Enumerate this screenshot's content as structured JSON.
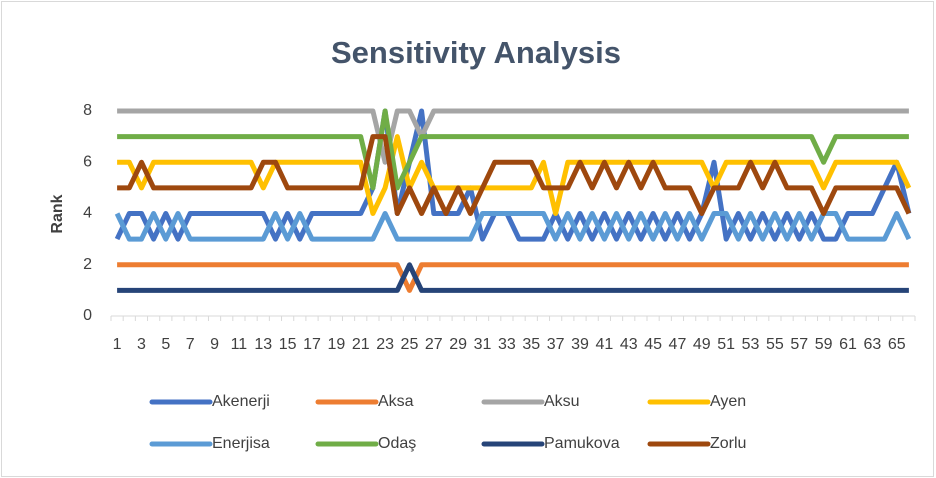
{
  "chart_data": {
    "type": "line",
    "title": "Sensitivity Analysis",
    "y_label": "Rank",
    "categories": [
      1,
      null,
      3,
      null,
      5,
      null,
      7,
      null,
      9,
      null,
      11,
      null,
      13,
      null,
      15,
      null,
      17,
      null,
      19,
      null,
      21,
      null,
      23,
      null,
      25,
      null,
      27,
      null,
      29,
      null,
      31,
      null,
      33,
      null,
      35,
      null,
      37,
      null,
      39,
      null,
      41,
      null,
      43,
      null,
      45,
      null,
      47,
      null,
      49,
      null,
      51,
      null,
      53,
      null,
      55,
      null,
      57,
      null,
      59,
      null,
      61,
      null,
      63,
      null,
      65,
      null
    ],
    "ylim": [
      0,
      8
    ],
    "yticks": [
      0,
      2,
      4,
      6,
      8
    ],
    "grid": false,
    "legend": "bottom",
    "series": [
      {
        "name": "Akenerji",
        "color": "#4472c4",
        "values": [
          3,
          4,
          4,
          3,
          4,
          3,
          4,
          4,
          4,
          4,
          4,
          4,
          4,
          3,
          4,
          3,
          4,
          4,
          4,
          4,
          4,
          5,
          8,
          4,
          6,
          8,
          4,
          4,
          4,
          5,
          3,
          4,
          4,
          3,
          3,
          3,
          4,
          3,
          4,
          3,
          4,
          3,
          4,
          3,
          4,
          3,
          4,
          3,
          4,
          6,
          3,
          4,
          3,
          4,
          3,
          4,
          3,
          4,
          3,
          3,
          4,
          4,
          4,
          5,
          6,
          4
        ]
      },
      {
        "name": "Aksa",
        "color": "#ed7d31",
        "values": [
          2,
          2,
          2,
          2,
          2,
          2,
          2,
          2,
          2,
          2,
          2,
          2,
          2,
          2,
          2,
          2,
          2,
          2,
          2,
          2,
          2,
          2,
          2,
          2,
          1,
          2,
          2,
          2,
          2,
          2,
          2,
          2,
          2,
          2,
          2,
          2,
          2,
          2,
          2,
          2,
          2,
          2,
          2,
          2,
          2,
          2,
          2,
          2,
          2,
          2,
          2,
          2,
          2,
          2,
          2,
          2,
          2,
          2,
          2,
          2,
          2,
          2,
          2,
          2,
          2,
          2
        ]
      },
      {
        "name": "Aksu",
        "color": "#a5a5a5",
        "values": [
          8,
          8,
          8,
          8,
          8,
          8,
          8,
          8,
          8,
          8,
          8,
          8,
          8,
          8,
          8,
          8,
          8,
          8,
          8,
          8,
          8,
          8,
          6,
          8,
          8,
          7,
          8,
          8,
          8,
          8,
          8,
          8,
          8,
          8,
          8,
          8,
          8,
          8,
          8,
          8,
          8,
          8,
          8,
          8,
          8,
          8,
          8,
          8,
          8,
          8,
          8,
          8,
          8,
          8,
          8,
          8,
          8,
          8,
          8,
          8,
          8,
          8,
          8,
          8,
          8,
          8
        ]
      },
      {
        "name": "Ayen",
        "color": "#ffc000",
        "values": [
          6,
          6,
          5,
          6,
          6,
          6,
          6,
          6,
          6,
          6,
          6,
          6,
          5,
          6,
          6,
          6,
          6,
          6,
          6,
          6,
          6,
          4,
          5,
          7,
          5,
          6,
          5,
          5,
          5,
          5,
          5,
          5,
          5,
          5,
          5,
          6,
          4,
          6,
          6,
          6,
          6,
          6,
          6,
          6,
          6,
          6,
          6,
          6,
          6,
          5,
          6,
          6,
          6,
          6,
          6,
          6,
          6,
          6,
          5,
          6,
          6,
          6,
          6,
          6,
          6,
          5
        ]
      },
      {
        "name": "Enerjisa",
        "color": "#5b9bd5",
        "values": [
          4,
          3,
          3,
          4,
          3,
          4,
          3,
          3,
          3,
          3,
          3,
          3,
          3,
          4,
          3,
          4,
          3,
          3,
          3,
          3,
          3,
          3,
          4,
          3,
          3,
          3,
          3,
          3,
          3,
          3,
          4,
          4,
          4,
          4,
          4,
          4,
          3,
          4,
          3,
          4,
          3,
          4,
          3,
          4,
          3,
          4,
          3,
          4,
          3,
          4,
          4,
          3,
          4,
          3,
          4,
          3,
          4,
          3,
          4,
          4,
          3,
          3,
          3,
          3,
          4,
          3
        ]
      },
      {
        "name": "Odaş",
        "color": "#70ad47",
        "values": [
          7,
          7,
          7,
          7,
          7,
          7,
          7,
          7,
          7,
          7,
          7,
          7,
          7,
          7,
          7,
          7,
          7,
          7,
          7,
          7,
          7,
          5,
          8,
          5,
          6,
          7,
          7,
          7,
          7,
          7,
          7,
          7,
          7,
          7,
          7,
          7,
          7,
          7,
          7,
          7,
          7,
          7,
          7,
          7,
          7,
          7,
          7,
          7,
          7,
          7,
          7,
          7,
          7,
          7,
          7,
          7,
          7,
          7,
          6,
          7,
          7,
          7,
          7,
          7,
          7,
          7
        ]
      },
      {
        "name": "Pamukova",
        "color": "#264478",
        "values": [
          1,
          1,
          1,
          1,
          1,
          1,
          1,
          1,
          1,
          1,
          1,
          1,
          1,
          1,
          1,
          1,
          1,
          1,
          1,
          1,
          1,
          1,
          1,
          1,
          2,
          1,
          1,
          1,
          1,
          1,
          1,
          1,
          1,
          1,
          1,
          1,
          1,
          1,
          1,
          1,
          1,
          1,
          1,
          1,
          1,
          1,
          1,
          1,
          1,
          1,
          1,
          1,
          1,
          1,
          1,
          1,
          1,
          1,
          1,
          1,
          1,
          1,
          1,
          1,
          1,
          1
        ]
      },
      {
        "name": "Zorlu",
        "color": "#9e480e",
        "values": [
          5,
          5,
          6,
          5,
          5,
          5,
          5,
          5,
          5,
          5,
          5,
          5,
          6,
          6,
          5,
          5,
          5,
          5,
          5,
          5,
          5,
          7,
          7,
          4,
          5,
          4,
          5,
          4,
          5,
          4,
          5,
          6,
          6,
          6,
          6,
          5,
          5,
          5,
          6,
          5,
          6,
          5,
          6,
          5,
          6,
          5,
          5,
          5,
          4,
          5,
          5,
          5,
          6,
          5,
          6,
          5,
          5,
          5,
          4,
          5,
          5,
          5,
          5,
          5,
          5,
          4
        ]
      }
    ]
  }
}
